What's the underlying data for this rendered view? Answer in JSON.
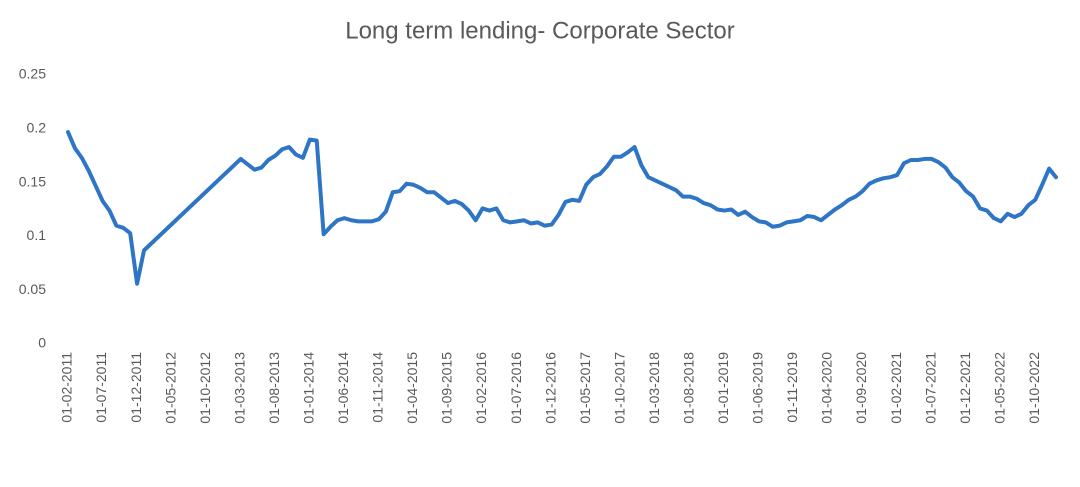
{
  "chart_data": {
    "type": "line",
    "title": "Long term lending- Corporate Sector",
    "x": [
      "01-02-2011",
      "01-03-2011",
      "01-04-2011",
      "01-05-2011",
      "01-06-2011",
      "01-07-2011",
      "01-08-2011",
      "01-09-2011",
      "01-10-2011",
      "01-11-2011",
      "01-12-2011",
      "01-01-2012",
      "01-03-2013",
      "01-04-2013",
      "01-05-2013",
      "01-06-2013",
      "01-07-2013",
      "01-08-2013",
      "01-09-2013",
      "01-10-2013",
      "01-11-2013",
      "01-12-2013",
      "01-01-2014",
      "01-02-2014",
      "01-03-2014",
      "01-04-2014",
      "01-05-2014",
      "01-06-2014",
      "01-07-2014",
      "01-08-2014",
      "01-09-2014",
      "01-10-2014",
      "01-11-2014",
      "01-12-2014",
      "01-01-2015",
      "01-02-2015",
      "01-03-2015",
      "01-04-2015",
      "01-05-2015",
      "01-06-2015",
      "01-07-2015",
      "01-08-2015",
      "01-09-2015",
      "01-10-2015",
      "01-11-2015",
      "01-12-2015",
      "01-01-2016",
      "01-02-2016",
      "01-03-2016",
      "01-04-2016",
      "01-05-2016",
      "01-06-2016",
      "01-07-2016",
      "01-08-2016",
      "01-09-2016",
      "01-10-2016",
      "01-11-2016",
      "01-12-2016",
      "01-01-2017",
      "01-02-2017",
      "01-03-2017",
      "01-04-2017",
      "01-05-2017",
      "01-06-2017",
      "01-07-2017",
      "01-08-2017",
      "01-09-2017",
      "01-10-2017",
      "01-11-2017",
      "01-12-2017",
      "01-01-2018",
      "01-02-2018",
      "01-03-2018",
      "01-04-2018",
      "01-05-2018",
      "01-06-2018",
      "01-07-2018",
      "01-08-2018",
      "01-09-2018",
      "01-10-2018",
      "01-11-2018",
      "01-12-2018",
      "01-01-2019",
      "01-02-2019",
      "01-03-2019",
      "01-04-2019",
      "01-05-2019",
      "01-06-2019",
      "01-07-2019",
      "01-08-2019",
      "01-09-2019",
      "01-10-2019",
      "01-11-2019",
      "01-12-2019",
      "01-01-2020",
      "01-02-2020",
      "01-03-2020",
      "01-04-2020",
      "01-05-2020",
      "01-06-2020",
      "01-07-2020",
      "01-08-2020",
      "01-09-2020",
      "01-10-2020",
      "01-11-2020",
      "01-12-2020",
      "01-01-2021",
      "01-02-2021",
      "01-03-2021",
      "01-04-2021",
      "01-05-2021",
      "01-06-2021",
      "01-07-2021",
      "01-08-2021",
      "01-09-2021",
      "01-10-2021",
      "01-11-2021",
      "01-12-2021",
      "01-01-2022",
      "01-02-2022",
      "01-03-2022",
      "01-04-2022",
      "01-05-2022",
      "01-06-2022",
      "01-07-2022",
      "01-08-2022",
      "01-09-2022",
      "01-10-2022",
      "01-11-2022",
      "01-12-2022",
      "01-01-2023"
    ],
    "values": [
      0.197,
      0.182,
      0.173,
      0.161,
      0.147,
      0.133,
      0.124,
      0.11,
      0.108,
      0.103,
      0.056,
      0.087,
      0.172,
      0.167,
      0.162,
      0.164,
      0.171,
      0.175,
      0.181,
      0.183,
      0.176,
      0.173,
      0.19,
      0.189,
      0.102,
      0.109,
      0.115,
      0.117,
      0.115,
      0.114,
      0.114,
      0.114,
      0.116,
      0.123,
      0.141,
      0.142,
      0.149,
      0.148,
      0.145,
      0.141,
      0.141,
      0.136,
      0.131,
      0.133,
      0.13,
      0.124,
      0.115,
      0.126,
      0.124,
      0.126,
      0.115,
      0.113,
      0.114,
      0.115,
      0.112,
      0.113,
      0.11,
      0.111,
      0.12,
      0.132,
      0.134,
      0.133,
      0.148,
      0.155,
      0.158,
      0.165,
      0.174,
      0.174,
      0.178,
      0.183,
      0.166,
      0.155,
      0.152,
      0.149,
      0.146,
      0.143,
      0.137,
      0.137,
      0.135,
      0.131,
      0.129,
      0.125,
      0.124,
      0.125,
      0.12,
      0.123,
      0.118,
      0.114,
      0.113,
      0.109,
      0.11,
      0.113,
      0.114,
      0.115,
      0.119,
      0.118,
      0.115,
      0.12,
      0.125,
      0.129,
      0.134,
      0.137,
      0.142,
      0.149,
      0.152,
      0.154,
      0.155,
      0.157,
      0.168,
      0.171,
      0.171,
      0.172,
      0.172,
      0.169,
      0.164,
      0.155,
      0.15,
      0.142,
      0.137,
      0.126,
      0.124,
      0.117,
      0.114,
      0.121,
      0.118,
      0.121,
      0.129,
      0.134,
      0.148,
      0.163,
      0.155
    ],
    "color": "#2e75c6",
    "xlim": [
      "01-02-2011",
      "01-01-2023"
    ],
    "xticks": [
      "01-02-2011",
      "01-07-2011",
      "01-12-2011",
      "01-05-2012",
      "01-10-2012",
      "01-03-2013",
      "01-08-2013",
      "01-01-2014",
      "01-06-2014",
      "01-11-2014",
      "01-04-2015",
      "01-09-2015",
      "01-02-2016",
      "01-07-2016",
      "01-12-2016",
      "01-05-2017",
      "01-10-2017",
      "01-03-2018",
      "01-08-2018",
      "01-01-2019",
      "01-06-2019",
      "01-11-2019",
      "01-04-2020",
      "01-09-2020",
      "01-02-2021",
      "01-07-2021",
      "01-12-2021",
      "01-05-2022",
      "01-10-2022"
    ],
    "ylim": [
      0,
      0.25
    ],
    "yticks": [
      0,
      0.05,
      0.1,
      0.15,
      0.2,
      0.25
    ],
    "grid": false
  }
}
